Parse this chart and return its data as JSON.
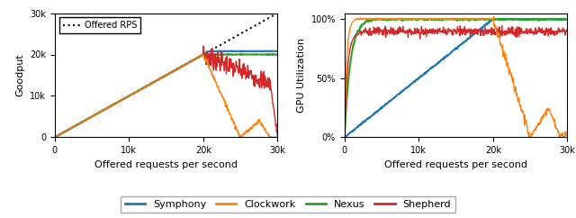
{
  "xlim": [
    0,
    30000
  ],
  "goodput_ylim": [
    0,
    30000
  ],
  "gpu_ylim": [
    0,
    1.05
  ],
  "xlabel": "Offered requests per second",
  "ylabel_left": "Goodput",
  "ylabel_right": "GPU Utilization",
  "colors": {
    "symphony": "#1f77b4",
    "clockwork": "#ff7f0e",
    "nexus": "#2ca02c",
    "shepherd": "#d62728"
  },
  "offered_rps_label": "Offered RPS",
  "xticks": [
    0,
    10000,
    20000,
    30000
  ],
  "xtick_labels": [
    "0",
    "10k",
    "20k",
    "30k"
  ],
  "goodput_yticks": [
    0,
    10000,
    20000,
    30000
  ],
  "goodput_ytick_labels": [
    "0",
    "10k",
    "20k",
    "30k"
  ],
  "gpu_yticks": [
    0.0,
    0.5,
    1.0
  ],
  "gpu_ytick_labels": [
    "0%",
    "50%",
    "100%"
  ]
}
